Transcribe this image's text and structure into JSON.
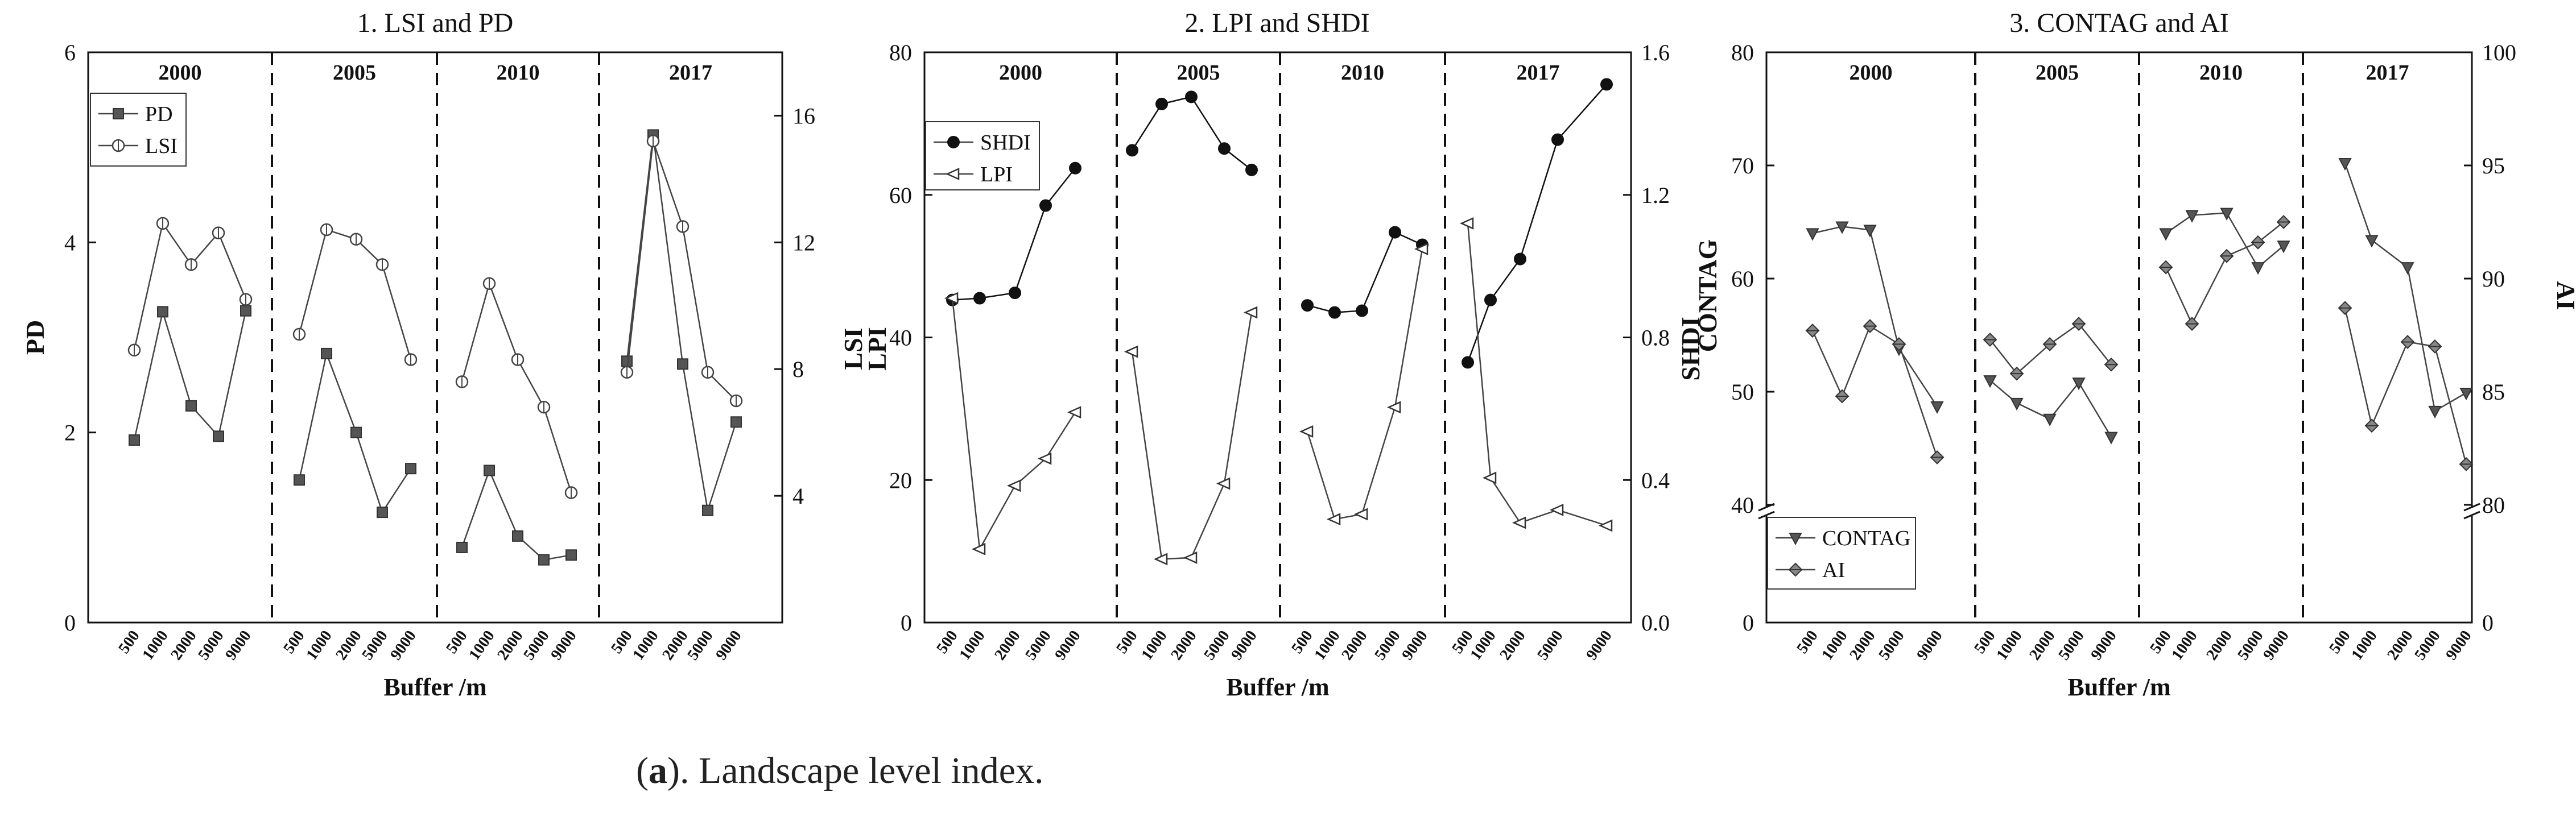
{
  "caption": {
    "label": "a",
    "text": "). Landscape level index.",
    "open": "("
  },
  "chart_data": [
    {
      "type": "line",
      "title": "1. LSI and PD",
      "xlabel": "Buffer /m",
      "ylabel_left": "PD",
      "ylabel_right": "",
      "ylim_left": [
        0,
        6
      ],
      "yticks_left": [
        0,
        2,
        4,
        6
      ],
      "ylim_right": [
        0,
        18
      ],
      "yticks_right": [
        4,
        8,
        12,
        16
      ],
      "years": [
        "2000",
        "2005",
        "2010",
        "2017"
      ],
      "buffers": [
        "500",
        "1000",
        "2000",
        "5000",
        "9000"
      ],
      "legend": [
        "PD",
        "LSI"
      ],
      "legend_position": "top-left",
      "series": [
        {
          "name": "PD",
          "axis": "left",
          "marker": "square",
          "segments": [
            [
              1.92,
              3.27,
              2.28,
              1.96,
              3.28
            ],
            [
              1.5,
              2.83,
              2.0,
              1.16,
              1.62
            ],
            [
              0.79,
              1.6,
              0.91,
              0.66,
              0.71
            ],
            [
              2.75,
              5.13,
              2.72,
              1.18,
              2.11
            ]
          ]
        },
        {
          "name": "LSI",
          "axis": "right",
          "marker": "circle",
          "segments": [
            [
              8.6,
              12.6,
              11.3,
              12.3,
              10.2
            ],
            [
              9.1,
              12.4,
              12.1,
              11.3,
              8.3
            ],
            [
              7.6,
              10.7,
              8.3,
              6.8,
              4.1
            ],
            [
              7.9,
              15.2,
              12.5,
              7.9,
              7.0
            ]
          ]
        }
      ]
    },
    {
      "type": "line",
      "title": "2. LPI and SHDI",
      "xlabel": "Buffer /m",
      "ylabel_left": [
        "LSI",
        "LPI"
      ],
      "ylabel_right": "SHDI",
      "ylim_left": [
        0,
        80
      ],
      "yticks_left": [
        0,
        20,
        40,
        60,
        80
      ],
      "ylim_right": [
        0.0,
        1.6
      ],
      "yticks_right": [
        "0.0",
        "0.4",
        "0.8",
        "1.2",
        "1.6"
      ],
      "years": [
        "2000",
        "2005",
        "2010",
        "2017"
      ],
      "buffers": [
        "500",
        "1000",
        "2000",
        "5000",
        "9000"
      ],
      "legend": [
        "SHDI",
        "LPI"
      ],
      "legend_position": "top-left",
      "series": [
        {
          "name": "SHDI",
          "axis": "right",
          "marker": "filled-circle",
          "segments": [
            [
              0.905,
              0.91,
              0.925,
              1.17,
              1.275
            ],
            [
              1.325,
              1.455,
              1.475,
              1.33,
              1.27
            ],
            [
              0.89,
              0.87,
              0.875,
              1.095,
              1.06
            ],
            [
              0.73,
              0.905,
              1.02,
              1.355,
              1.51
            ]
          ]
        },
        {
          "name": "LPI",
          "axis": "left",
          "marker": "triangle-left",
          "segments": [
            [
              45.5,
              10.3,
              19.2,
              23.0,
              29.5
            ],
            [
              38.0,
              8.9,
              9.1,
              19.5,
              43.5
            ],
            [
              26.8,
              14.5,
              15.2,
              30.2,
              52.4
            ],
            [
              56.0,
              20.3,
              14.0,
              15.8,
              13.6
            ]
          ]
        }
      ]
    },
    {
      "type": "line",
      "title": "3. CONTAG and AI",
      "xlabel": "Buffer /m",
      "ylabel_left": "CONTAG",
      "ylabel_right": "AI",
      "ylim_left": [
        40,
        80
      ],
      "yticks_left": [
        0,
        40,
        50,
        60,
        70,
        80
      ],
      "ylim_right": [
        80,
        100
      ],
      "yticks_right": [
        0,
        80,
        85,
        90,
        95,
        100
      ],
      "axis_break": true,
      "years": [
        "2000",
        "2005",
        "2010",
        "2017"
      ],
      "buffers": [
        "500",
        "1000",
        "2000",
        "5000",
        "9000"
      ],
      "legend": [
        "CONTAG",
        "AI"
      ],
      "legend_position": "bottom-left",
      "series": [
        {
          "name": "CONTAG",
          "axis": "left",
          "marker": "triangle-down",
          "segments": [
            [
              64.0,
              64.6,
              64.3,
              53.8,
              48.7
            ],
            [
              51.0,
              49.0,
              47.6,
              50.8,
              46.0
            ],
            [
              64.0,
              65.6,
              65.8,
              61.0,
              62.9
            ],
            [
              70.2,
              63.4,
              61.0,
              48.3,
              49.9
            ]
          ]
        },
        {
          "name": "AI",
          "axis": "right",
          "marker": "diamond",
          "segments": [
            [
              87.7,
              84.8,
              87.9,
              87.1,
              82.1
            ],
            [
              87.3,
              85.8,
              87.1,
              88.0,
              86.2
            ],
            [
              90.5,
              88.0,
              91.0,
              91.6,
              92.5
            ],
            [
              88.7,
              83.5,
              87.2,
              87.0,
              81.8
            ]
          ]
        }
      ]
    }
  ]
}
